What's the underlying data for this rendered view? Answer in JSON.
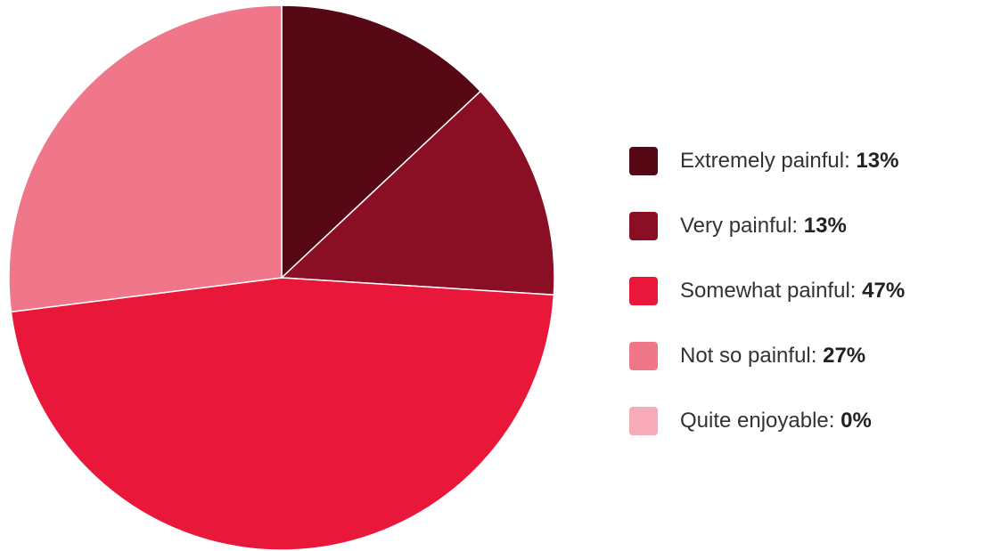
{
  "chart_data": {
    "type": "pie",
    "slices": [
      {
        "label": "Extremely painful",
        "value": 13,
        "value_label": "13%",
        "color": "#560815"
      },
      {
        "label": "Very painful",
        "value": 13,
        "value_label": "13%",
        "color": "#8a0f24"
      },
      {
        "label": "Somewhat painful",
        "value": 47,
        "value_label": "47%",
        "color": "#e9173a"
      },
      {
        "label": "Not so painful",
        "value": 27,
        "value_label": "27%",
        "color": "#f07789"
      },
      {
        "label": "Quite enjoyable",
        "value": 0,
        "value_label": "0%",
        "color": "#f7aab7"
      }
    ],
    "legend_position": "right",
    "start_angle": "top",
    "direction": "clockwise",
    "slice_border_color": "#ffffff"
  }
}
